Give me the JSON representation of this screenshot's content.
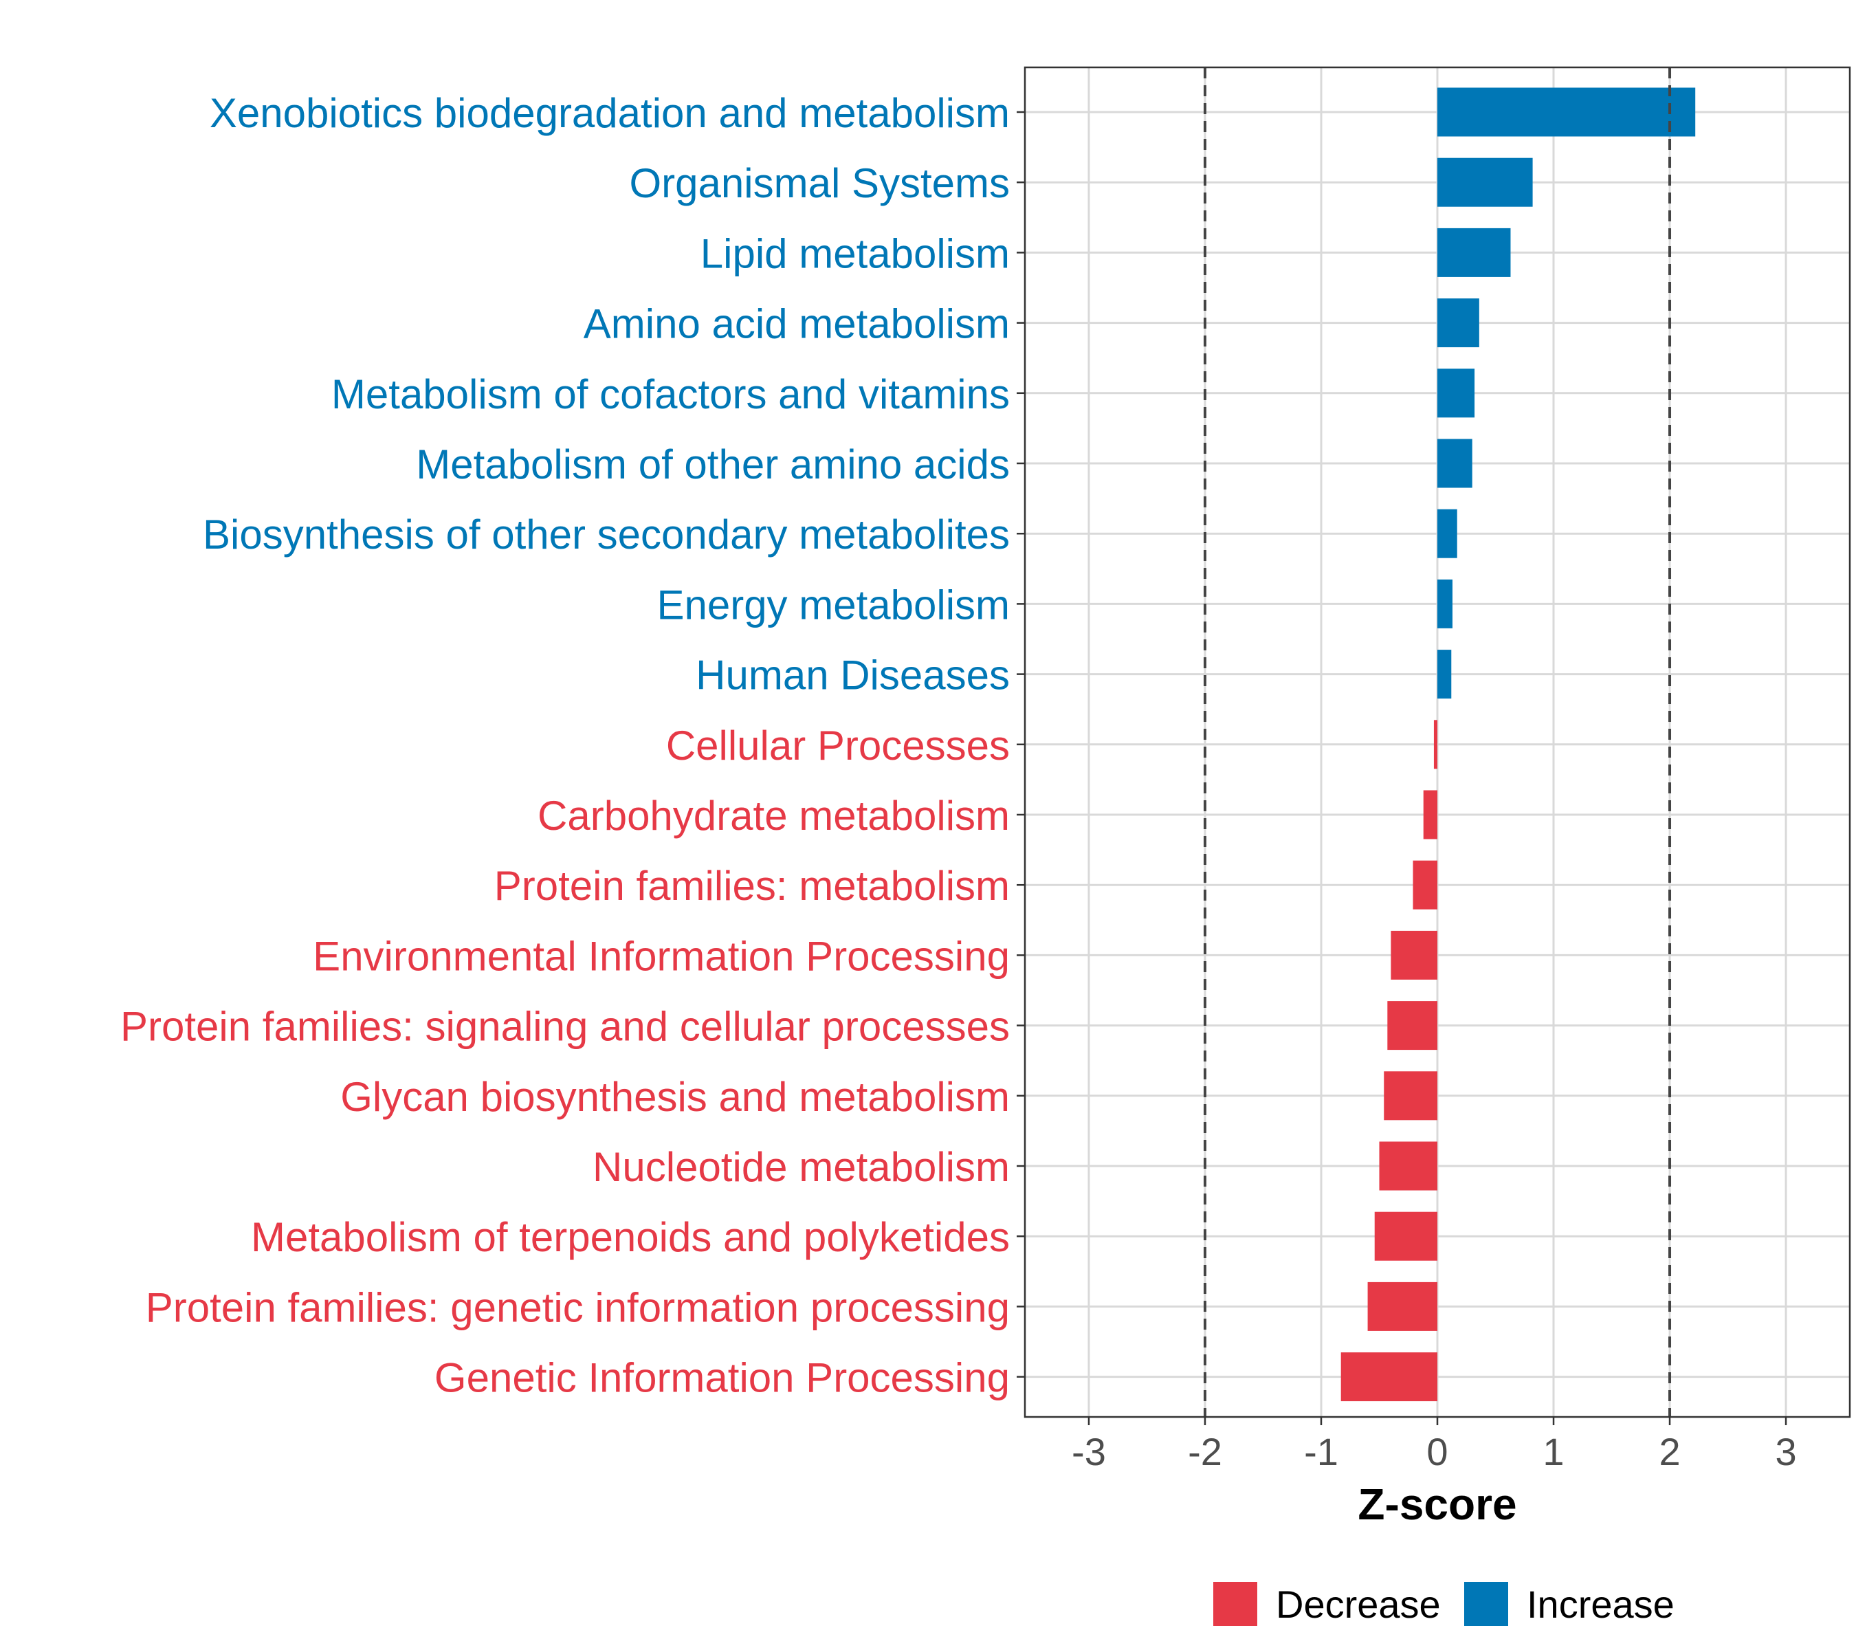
{
  "chart_data": {
    "type": "bar",
    "orientation": "horizontal",
    "title": "",
    "xlabel": "Z-score",
    "ylabel": "",
    "xlim": [
      -3.55,
      3.55
    ],
    "xticks": [
      -3,
      -2,
      -1,
      0,
      1,
      2,
      3
    ],
    "xtick_labels": [
      "-3",
      "-2",
      "-1",
      "0",
      "1",
      "2",
      "3"
    ],
    "reference_lines": [
      -2,
      2
    ],
    "grid": true,
    "legend_position": "bottom",
    "categories": [
      "Xenobiotics biodegradation and metabolism",
      "Organismal Systems",
      "Lipid metabolism",
      "Amino acid metabolism",
      "Metabolism of cofactors and vitamins",
      "Metabolism of other amino acids",
      "Biosynthesis of other secondary metabolites",
      "Energy metabolism",
      "Human Diseases",
      "Cellular Processes",
      "Carbohydrate metabolism",
      "Protein families: metabolism",
      "Environmental Information Processing",
      "Protein families: signaling and cellular processes",
      "Glycan biosynthesis and metabolism",
      "Nucleotide metabolism",
      "Metabolism of terpenoids and polyketides",
      "Protein families: genetic information processing",
      "Genetic Information Processing"
    ],
    "values": [
      2.22,
      0.82,
      0.63,
      0.36,
      0.32,
      0.3,
      0.17,
      0.13,
      0.12,
      -0.03,
      -0.12,
      -0.21,
      -0.4,
      -0.43,
      -0.46,
      -0.5,
      -0.54,
      -0.6,
      -0.83
    ],
    "groups": [
      "Increase",
      "Increase",
      "Increase",
      "Increase",
      "Increase",
      "Increase",
      "Increase",
      "Increase",
      "Increase",
      "Decrease",
      "Decrease",
      "Decrease",
      "Decrease",
      "Decrease",
      "Decrease",
      "Decrease",
      "Decrease",
      "Decrease",
      "Decrease"
    ],
    "legend": [
      {
        "name": "Decrease",
        "color": "#E63946"
      },
      {
        "name": "Increase",
        "color": "#0077B6"
      }
    ],
    "colors": {
      "Decrease": "#E63946",
      "Increase": "#0077B6"
    }
  }
}
